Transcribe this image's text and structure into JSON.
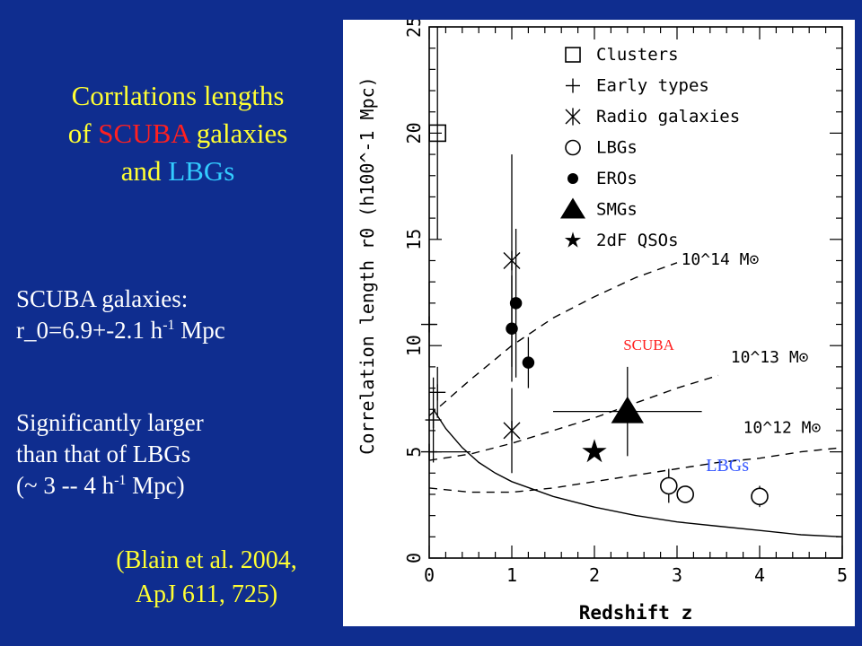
{
  "slide": {
    "title_part1": "Corrlations lengths",
    "title_part2": "of ",
    "title_scuba": "SCUBA",
    "title_part3": " galaxies",
    "title_part4": "and ",
    "title_lbgs": "LBGs",
    "scuba_label": "SCUBA galaxies:",
    "r0_prefix": "r_0=6.9+-2.1 h",
    "r0_exp": "-1",
    "r0_unit": " Mpc",
    "sig_line1": "Significantly larger",
    "sig_line2": "than that of LBGs",
    "lbg_prefix": "(~ 3 -- 4 h",
    "lbg_exp": "-1",
    "lbg_unit": " Mpc)",
    "ref_line1": "(Blain et al. 2004,",
    "ref_line2": "ApJ 611, 725)"
  },
  "chart_data": {
    "type": "scatter",
    "xlabel": "Redshift z",
    "ylabel": "Correlation length r0 (h100^-1 Mpc)",
    "xlim": [
      0,
      5
    ],
    "ylim": [
      0,
      25
    ],
    "x_ticks": [
      "0",
      "1",
      "2",
      "3",
      "4",
      "5"
    ],
    "y_ticks": [
      "0",
      "5",
      "10",
      "15",
      "20",
      "25"
    ],
    "legend_position": "top-right",
    "legend": [
      "Clusters",
      "Early types",
      "Radio galaxies",
      "LBGs",
      "EROs",
      "SMGs",
      "2dF QSOs"
    ],
    "series": [
      {
        "name": "Clusters",
        "marker": "square",
        "points": [
          {
            "x": 0.1,
            "y": 20,
            "yerr": [
              5,
              5
            ]
          }
        ]
      },
      {
        "name": "Early types",
        "marker": "plus",
        "points": [
          {
            "x": 0.0,
            "y": 5.0,
            "xerr": [
              0.0,
              0.5
            ]
          },
          {
            "x": 0.0,
            "y": 11.0,
            "yerr": [
              2.0,
              2.0
            ]
          },
          {
            "x": 0.05,
            "y": 6.5,
            "yerr": [
              2.0,
              2.0
            ]
          },
          {
            "x": 0.1,
            "y": 7.8,
            "yerr": [
              1.2,
              1.2
            ]
          }
        ]
      },
      {
        "name": "Radio galaxies",
        "marker": "asterisk",
        "points": [
          {
            "x": 1.0,
            "y": 14.0,
            "yerr": [
              5.0,
              5.0
            ]
          },
          {
            "x": 1.0,
            "y": 6.0,
            "yerr": [
              2.0,
              2.0
            ]
          }
        ]
      },
      {
        "name": "LBGs",
        "marker": "circle",
        "points": [
          {
            "x": 2.9,
            "y": 3.4,
            "yerr": [
              0.8,
              0.8
            ]
          },
          {
            "x": 3.1,
            "y": 3.0,
            "yerr": [
              0.3,
              0.3
            ]
          },
          {
            "x": 4.0,
            "y": 2.9,
            "yerr": [
              0.5,
              0.5
            ]
          }
        ]
      },
      {
        "name": "EROs",
        "marker": "dot",
        "points": [
          {
            "x": 1.05,
            "y": 12.0,
            "yerr": [
              3.5,
              3.5
            ]
          },
          {
            "x": 1.0,
            "y": 10.8,
            "yerr": [
              2.5,
              2.5
            ]
          },
          {
            "x": 1.2,
            "y": 9.2,
            "yerr": [
              1.2,
              1.2
            ]
          }
        ]
      },
      {
        "name": "SMGs",
        "marker": "triangle",
        "points": [
          {
            "x": 2.4,
            "y": 6.9,
            "xerr": [
              0.9,
              0.9
            ],
            "yerr": [
              2.1,
              2.1
            ]
          }
        ]
      },
      {
        "name": "2dF QSOs",
        "marker": "star",
        "points": [
          {
            "x": 2.0,
            "y": 5.0
          }
        ]
      }
    ],
    "curves": [
      {
        "label": "10^14 M⊙",
        "style": "dashed",
        "x": [
          0,
          0.5,
          1.0,
          1.5,
          2.0,
          2.5,
          3.0
        ],
        "y": [
          6.7,
          8.4,
          10.0,
          11.3,
          12.3,
          13.2,
          13.9
        ]
      },
      {
        "label": "10^13 M⊙",
        "style": "dashed",
        "x": [
          0,
          0.5,
          1.0,
          1.5,
          2.0,
          2.5,
          3.0,
          3.5
        ],
        "y": [
          4.6,
          4.9,
          5.4,
          6.0,
          6.6,
          7.3,
          8.0,
          8.6
        ]
      },
      {
        "label": "10^12 M⊙",
        "style": "dashed",
        "x": [
          0,
          0.5,
          1.0,
          1.5,
          2.0,
          2.5,
          3.0,
          3.5,
          4.0,
          4.5,
          5.0
        ],
        "y": [
          3.3,
          3.1,
          3.1,
          3.3,
          3.6,
          3.9,
          4.2,
          4.5,
          4.7,
          5.0,
          5.2
        ]
      },
      {
        "label": "",
        "style": "solid",
        "x": [
          0.05,
          0.2,
          0.4,
          0.6,
          0.8,
          1.0,
          1.5,
          2.0,
          2.5,
          3.0,
          3.5,
          4.0,
          4.5,
          5.0
        ],
        "y": [
          7.0,
          6.1,
          5.2,
          4.5,
          4.0,
          3.6,
          2.9,
          2.4,
          2.0,
          1.7,
          1.5,
          1.3,
          1.1,
          1.0
        ]
      }
    ],
    "annotations": [
      {
        "text": "SCUBA",
        "x": 2.35,
        "y": 9.8,
        "color": "#ff2020"
      },
      {
        "text": "LBGs",
        "x": 3.35,
        "y": 4.1,
        "color": "#3355ff"
      }
    ]
  }
}
